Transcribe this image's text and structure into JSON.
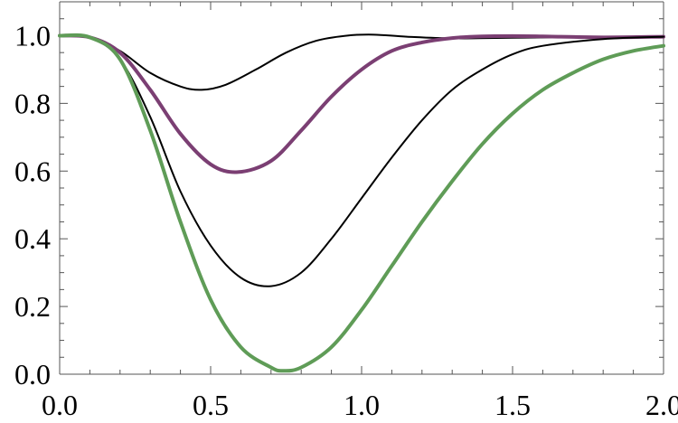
{
  "chart_data": {
    "type": "line",
    "xlim": [
      0,
      2
    ],
    "ylim": [
      0,
      1.1
    ],
    "x_ticks": [
      "0.0",
      "0.5",
      "1.0",
      "1.5",
      "2.0"
    ],
    "y_ticks": [
      "0.0",
      "0.2",
      "0.4",
      "0.6",
      "0.8",
      "1.0"
    ],
    "grid": false,
    "legend": "none",
    "series": [
      {
        "color": "#000000",
        "x": [
          0,
          0.1,
          0.2,
          0.3,
          0.4,
          0.47,
          0.55,
          0.65,
          0.75,
          0.85,
          0.95,
          1.04,
          1.15,
          1.3,
          1.5,
          2.0
        ],
        "values": [
          1.0,
          0.995,
          0.955,
          0.89,
          0.85,
          0.84,
          0.855,
          0.9,
          0.95,
          0.985,
          1.0,
          1.003,
          0.997,
          0.992,
          0.994,
          0.998
        ]
      },
      {
        "color": "#7b3f73",
        "x": [
          0,
          0.1,
          0.2,
          0.3,
          0.4,
          0.5,
          0.59,
          0.7,
          0.8,
          0.9,
          1.0,
          1.1,
          1.2,
          1.3,
          1.4,
          1.5,
          1.6,
          1.8,
          2.0
        ],
        "values": [
          1.0,
          0.995,
          0.95,
          0.84,
          0.71,
          0.62,
          0.597,
          0.63,
          0.72,
          0.82,
          0.9,
          0.955,
          0.98,
          0.993,
          0.998,
          0.999,
          0.998,
          0.995,
          0.997
        ]
      },
      {
        "color": "#000000",
        "x": [
          0,
          0.1,
          0.2,
          0.3,
          0.4,
          0.5,
          0.6,
          0.7,
          0.8,
          0.9,
          1.0,
          1.1,
          1.2,
          1.3,
          1.4,
          1.5,
          1.6,
          1.8,
          2.0
        ],
        "values": [
          1.0,
          0.995,
          0.93,
          0.76,
          0.54,
          0.38,
          0.285,
          0.26,
          0.3,
          0.4,
          0.52,
          0.64,
          0.75,
          0.84,
          0.9,
          0.945,
          0.97,
          0.99,
          0.997
        ]
      },
      {
        "color": "#5f9c57",
        "x": [
          0,
          0.1,
          0.2,
          0.3,
          0.4,
          0.5,
          0.6,
          0.7,
          0.74,
          0.8,
          0.9,
          1.0,
          1.1,
          1.2,
          1.3,
          1.4,
          1.5,
          1.6,
          1.7,
          1.8,
          1.9,
          2.0
        ],
        "values": [
          1.0,
          0.995,
          0.93,
          0.72,
          0.45,
          0.22,
          0.08,
          0.02,
          0.01,
          0.02,
          0.08,
          0.19,
          0.32,
          0.45,
          0.57,
          0.68,
          0.77,
          0.84,
          0.89,
          0.93,
          0.955,
          0.97
        ]
      }
    ]
  }
}
